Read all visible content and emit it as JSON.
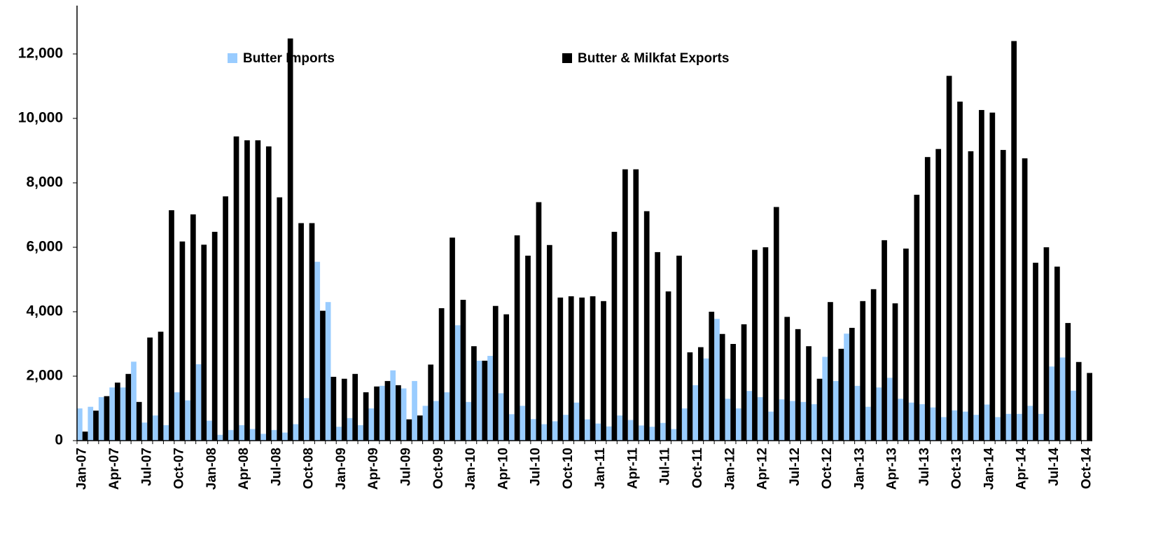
{
  "chart_data": {
    "type": "bar",
    "categories": [
      "Jan-07",
      null,
      null,
      "Apr-07",
      null,
      null,
      "Jul-07",
      null,
      null,
      "Oct-07",
      null,
      null,
      "Jan-08",
      null,
      null,
      "Apr-08",
      null,
      null,
      "Jul-08",
      null,
      null,
      "Oct-08",
      null,
      null,
      "Jan-09",
      null,
      null,
      "Apr-09",
      null,
      null,
      "Jul-09",
      null,
      null,
      "Oct-09",
      null,
      null,
      "Jan-10",
      null,
      null,
      "Apr-10",
      null,
      null,
      "Jul-10",
      null,
      null,
      "Oct-10",
      null,
      null,
      "Jan-11",
      null,
      null,
      "Apr-11",
      null,
      null,
      "Jul-11",
      null,
      null,
      "Oct-11",
      null,
      null,
      "Jan-12",
      null,
      null,
      "Apr-12",
      null,
      null,
      "Jul-12",
      null,
      null,
      "Oct-12",
      null,
      null,
      "Jan-13",
      null,
      null,
      "Apr-13",
      null,
      null,
      "Jul-13",
      null,
      null,
      "Oct-13",
      null,
      null,
      "Jan-14",
      null,
      null,
      "Apr-14",
      null,
      null,
      "Jul-14",
      null,
      null,
      "Oct-14"
    ],
    "series": [
      {
        "name": "Butter Imports",
        "color": "#99ccff",
        "values": [
          1000,
          1050,
          1350,
          1650,
          1650,
          2450,
          560,
          780,
          480,
          1500,
          1250,
          2370,
          620,
          180,
          330,
          480,
          360,
          210,
          330,
          250,
          510,
          1320,
          5550,
          4300,
          430,
          700,
          480,
          1000,
          1700,
          2180,
          1620,
          1850,
          1080,
          1230,
          1500,
          3580,
          1200,
          2480,
          2630,
          1470,
          820,
          1080,
          670,
          510,
          600,
          800,
          1180,
          660,
          530,
          440,
          780,
          640,
          470,
          430,
          550,
          360,
          1000,
          1720,
          2550,
          3780,
          1300,
          1000,
          1540,
          1350,
          900,
          1280,
          1230,
          1200,
          1130,
          2600,
          1850,
          3320,
          1700,
          1050,
          1650,
          1950,
          1300,
          1180,
          1130,
          1030,
          730,
          940,
          900,
          800,
          1120,
          730,
          830,
          830,
          1080,
          830,
          2300,
          2580,
          1550,
          null
        ]
      },
      {
        "name": "Butter & Milkfat Exports",
        "color": "#000000",
        "values": [
          280,
          930,
          1380,
          1800,
          2070,
          1200,
          3200,
          3380,
          7150,
          6180,
          7020,
          6080,
          6480,
          7580,
          9440,
          9320,
          9320,
          9130,
          7550,
          12480,
          6750,
          6750,
          4030,
          1980,
          1920,
          2070,
          1500,
          1680,
          1850,
          1720,
          660,
          780,
          2360,
          4110,
          6300,
          4370,
          2930,
          2480,
          4180,
          3920,
          6370,
          5740,
          7400,
          6070,
          4440,
          4480,
          4440,
          4480,
          4330,
          6480,
          8420,
          8420,
          7120,
          5850,
          4630,
          5740,
          2740,
          2900,
          4000,
          3310,
          3000,
          3610,
          5920,
          6000,
          7250,
          3840,
          3460,
          2930,
          1920,
          4300,
          2850,
          3500,
          4330,
          4700,
          6220,
          4260,
          5960,
          7630,
          8800,
          9050,
          11320,
          10520,
          8980,
          10260,
          10180,
          9020,
          12400,
          8760,
          5520,
          6000,
          5400,
          3650,
          2440,
          2100
        ]
      }
    ],
    "ylim": [
      0,
      13500
    ],
    "yticks": [
      0,
      {
        "value": 2000,
        "label": "2,000"
      },
      {
        "value": 4000,
        "label": "4,000"
      },
      {
        "value": 6000,
        "label": "6,000"
      },
      {
        "value": 8000,
        "label": "8,000"
      },
      {
        "value": 10000,
        "label": "10,000"
      },
      {
        "value": 12000,
        "label": "12,000"
      }
    ],
    "grid": false
  }
}
